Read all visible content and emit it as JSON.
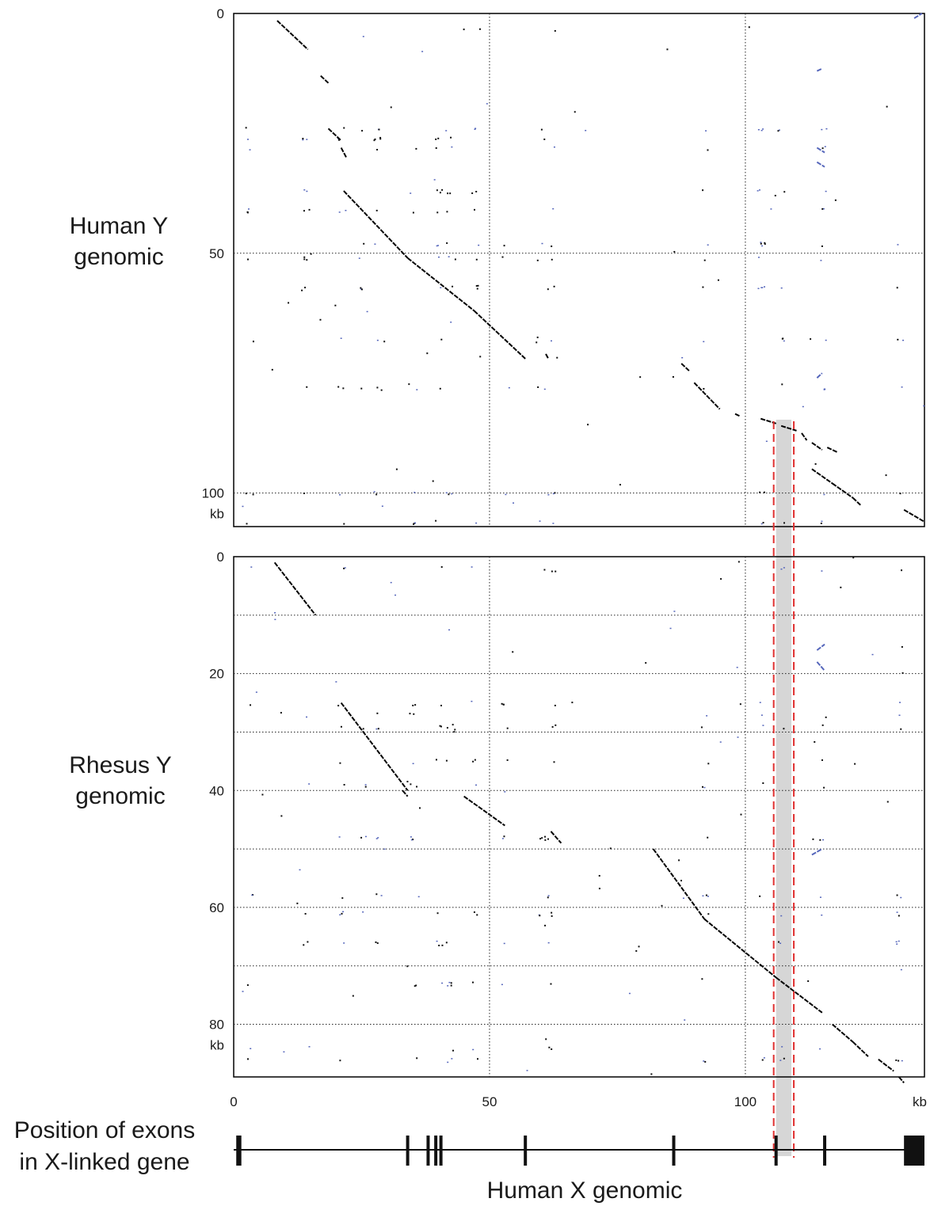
{
  "chart_data": [
    {
      "type": "scatter",
      "ylabel": [
        "Human Y",
        "genomic"
      ],
      "x_unit": "kb",
      "y_unit": "kb",
      "xlim": [
        0,
        135
      ],
      "ylim": [
        0,
        107
      ],
      "y_ticks": [
        0,
        50,
        100
      ],
      "x_grid": [
        50,
        100
      ],
      "y_grid": [
        50,
        100
      ],
      "series": [
        {
          "style": "main",
          "segments": [
            [
              [
                8.5,
                1.5
              ],
              [
                14.5,
                7.5
              ]
            ],
            [
              [
                17,
                13
              ],
              [
                18.5,
                14.5
              ]
            ],
            [
              [
                18.5,
                24
              ],
              [
                21,
                26.5
              ]
            ],
            [
              [
                21,
                28
              ],
              [
                22,
                30
              ]
            ],
            [
              [
                21.5,
                37
              ],
              [
                34,
                51
              ]
            ],
            [
              [
                34,
                51
              ],
              [
                47,
                62
              ]
            ],
            [
              [
                47,
                62
              ],
              [
                57,
                72
              ]
            ],
            [
              [
                61,
                71
              ],
              [
                61.5,
                72
              ]
            ],
            [
              [
                87.5,
                73
              ],
              [
                89,
                74.5
              ]
            ],
            [
              [
                90,
                77
              ],
              [
                95,
                82.5
              ]
            ],
            [
              [
                98,
                83.5
              ],
              [
                99,
                84
              ]
            ],
            [
              [
                103,
                84.5
              ],
              [
                106,
                85.5
              ]
            ],
            [
              [
                107,
                86
              ],
              [
                110,
                87
              ]
            ],
            [
              [
                111,
                87.5
              ],
              [
                112,
                89
              ]
            ],
            [
              [
                113,
                89.5
              ],
              [
                115,
                91
              ]
            ],
            [
              [
                116,
                90.5
              ],
              [
                118,
                91.5
              ]
            ],
            [
              [
                113,
                95
              ],
              [
                117,
                98
              ]
            ],
            [
              [
                117,
                98
              ],
              [
                121,
                101
              ]
            ],
            [
              [
                121,
                101
              ],
              [
                122.5,
                102.5
              ]
            ],
            [
              [
                131,
                103.5
              ],
              [
                135,
                106
              ]
            ]
          ]
        },
        {
          "style": "repeat",
          "segments": [
            [
              [
                114,
                28
              ],
              [
                115.5,
                29
              ]
            ],
            [
              [
                114,
                31
              ],
              [
                115.5,
                32
              ]
            ],
            [
              [
                114,
                12
              ],
              [
                115,
                11.5
              ]
            ],
            [
              [
                114,
                76
              ],
              [
                115,
                75
              ]
            ],
            [
              [
                133,
                1
              ],
              [
                134.5,
                0
              ]
            ]
          ]
        }
      ]
    },
    {
      "type": "scatter",
      "ylabel": [
        "Rhesus Y",
        "genomic"
      ],
      "xlabel": "Human X genomic",
      "x_unit": "kb",
      "y_unit": "kb",
      "xlim": [
        0,
        135
      ],
      "ylim": [
        0,
        89
      ],
      "x_ticks": [
        0,
        50,
        100
      ],
      "y_ticks": [
        0,
        20,
        40,
        60,
        80
      ],
      "x_grid": [
        50,
        100
      ],
      "y_grid": [
        10,
        20,
        30,
        40,
        50,
        60,
        70,
        80
      ],
      "series": [
        {
          "style": "main",
          "segments": [
            [
              [
                8,
                1
              ],
              [
                16,
                10
              ]
            ],
            [
              [
                21,
                25
              ],
              [
                34,
                40
              ]
            ],
            [
              [
                45,
                41
              ],
              [
                53,
                46
              ]
            ],
            [
              [
                62,
                47
              ],
              [
                64,
                49
              ]
            ],
            [
              [
                82,
                50
              ],
              [
                92,
                62
              ]
            ],
            [
              [
                92,
                62
              ],
              [
                106,
                72
              ]
            ],
            [
              [
                106,
                72
              ],
              [
                115,
                78
              ]
            ],
            [
              [
                117,
                80
              ],
              [
                121,
                83
              ]
            ],
            [
              [
                121,
                83
              ],
              [
                124,
                85.5
              ]
            ],
            [
              [
                126,
                86
              ],
              [
                129,
                88
              ]
            ],
            [
              [
                130,
                89
              ],
              [
                131,
                90
              ]
            ],
            [
              [
                33,
                40
              ],
              [
                34,
                41
              ]
            ]
          ]
        },
        {
          "style": "repeat",
          "segments": [
            [
              [
                114,
                16
              ],
              [
                115.5,
                15
              ]
            ],
            [
              [
                114,
                18
              ],
              [
                115.5,
                19.5
              ]
            ],
            [
              [
                113,
                51
              ],
              [
                115,
                50
              ]
            ]
          ]
        }
      ]
    }
  ],
  "highlight": {
    "from_kb": 106,
    "to_kb": 109
  },
  "exon_track": {
    "label_lines": [
      "Position of exons",
      "in X-linked gene"
    ],
    "exons_kb": [
      1,
      34,
      38,
      39.5,
      40.5,
      57,
      86,
      106,
      115.5
    ],
    "big_exons_kb": [
      [
        0.5,
        1.5
      ],
      [
        131,
        135
      ]
    ]
  },
  "colors": {
    "main": "#000000",
    "repeat": "#5566bb",
    "highlight": "#d6d6d6",
    "dashed": "#e03030"
  }
}
